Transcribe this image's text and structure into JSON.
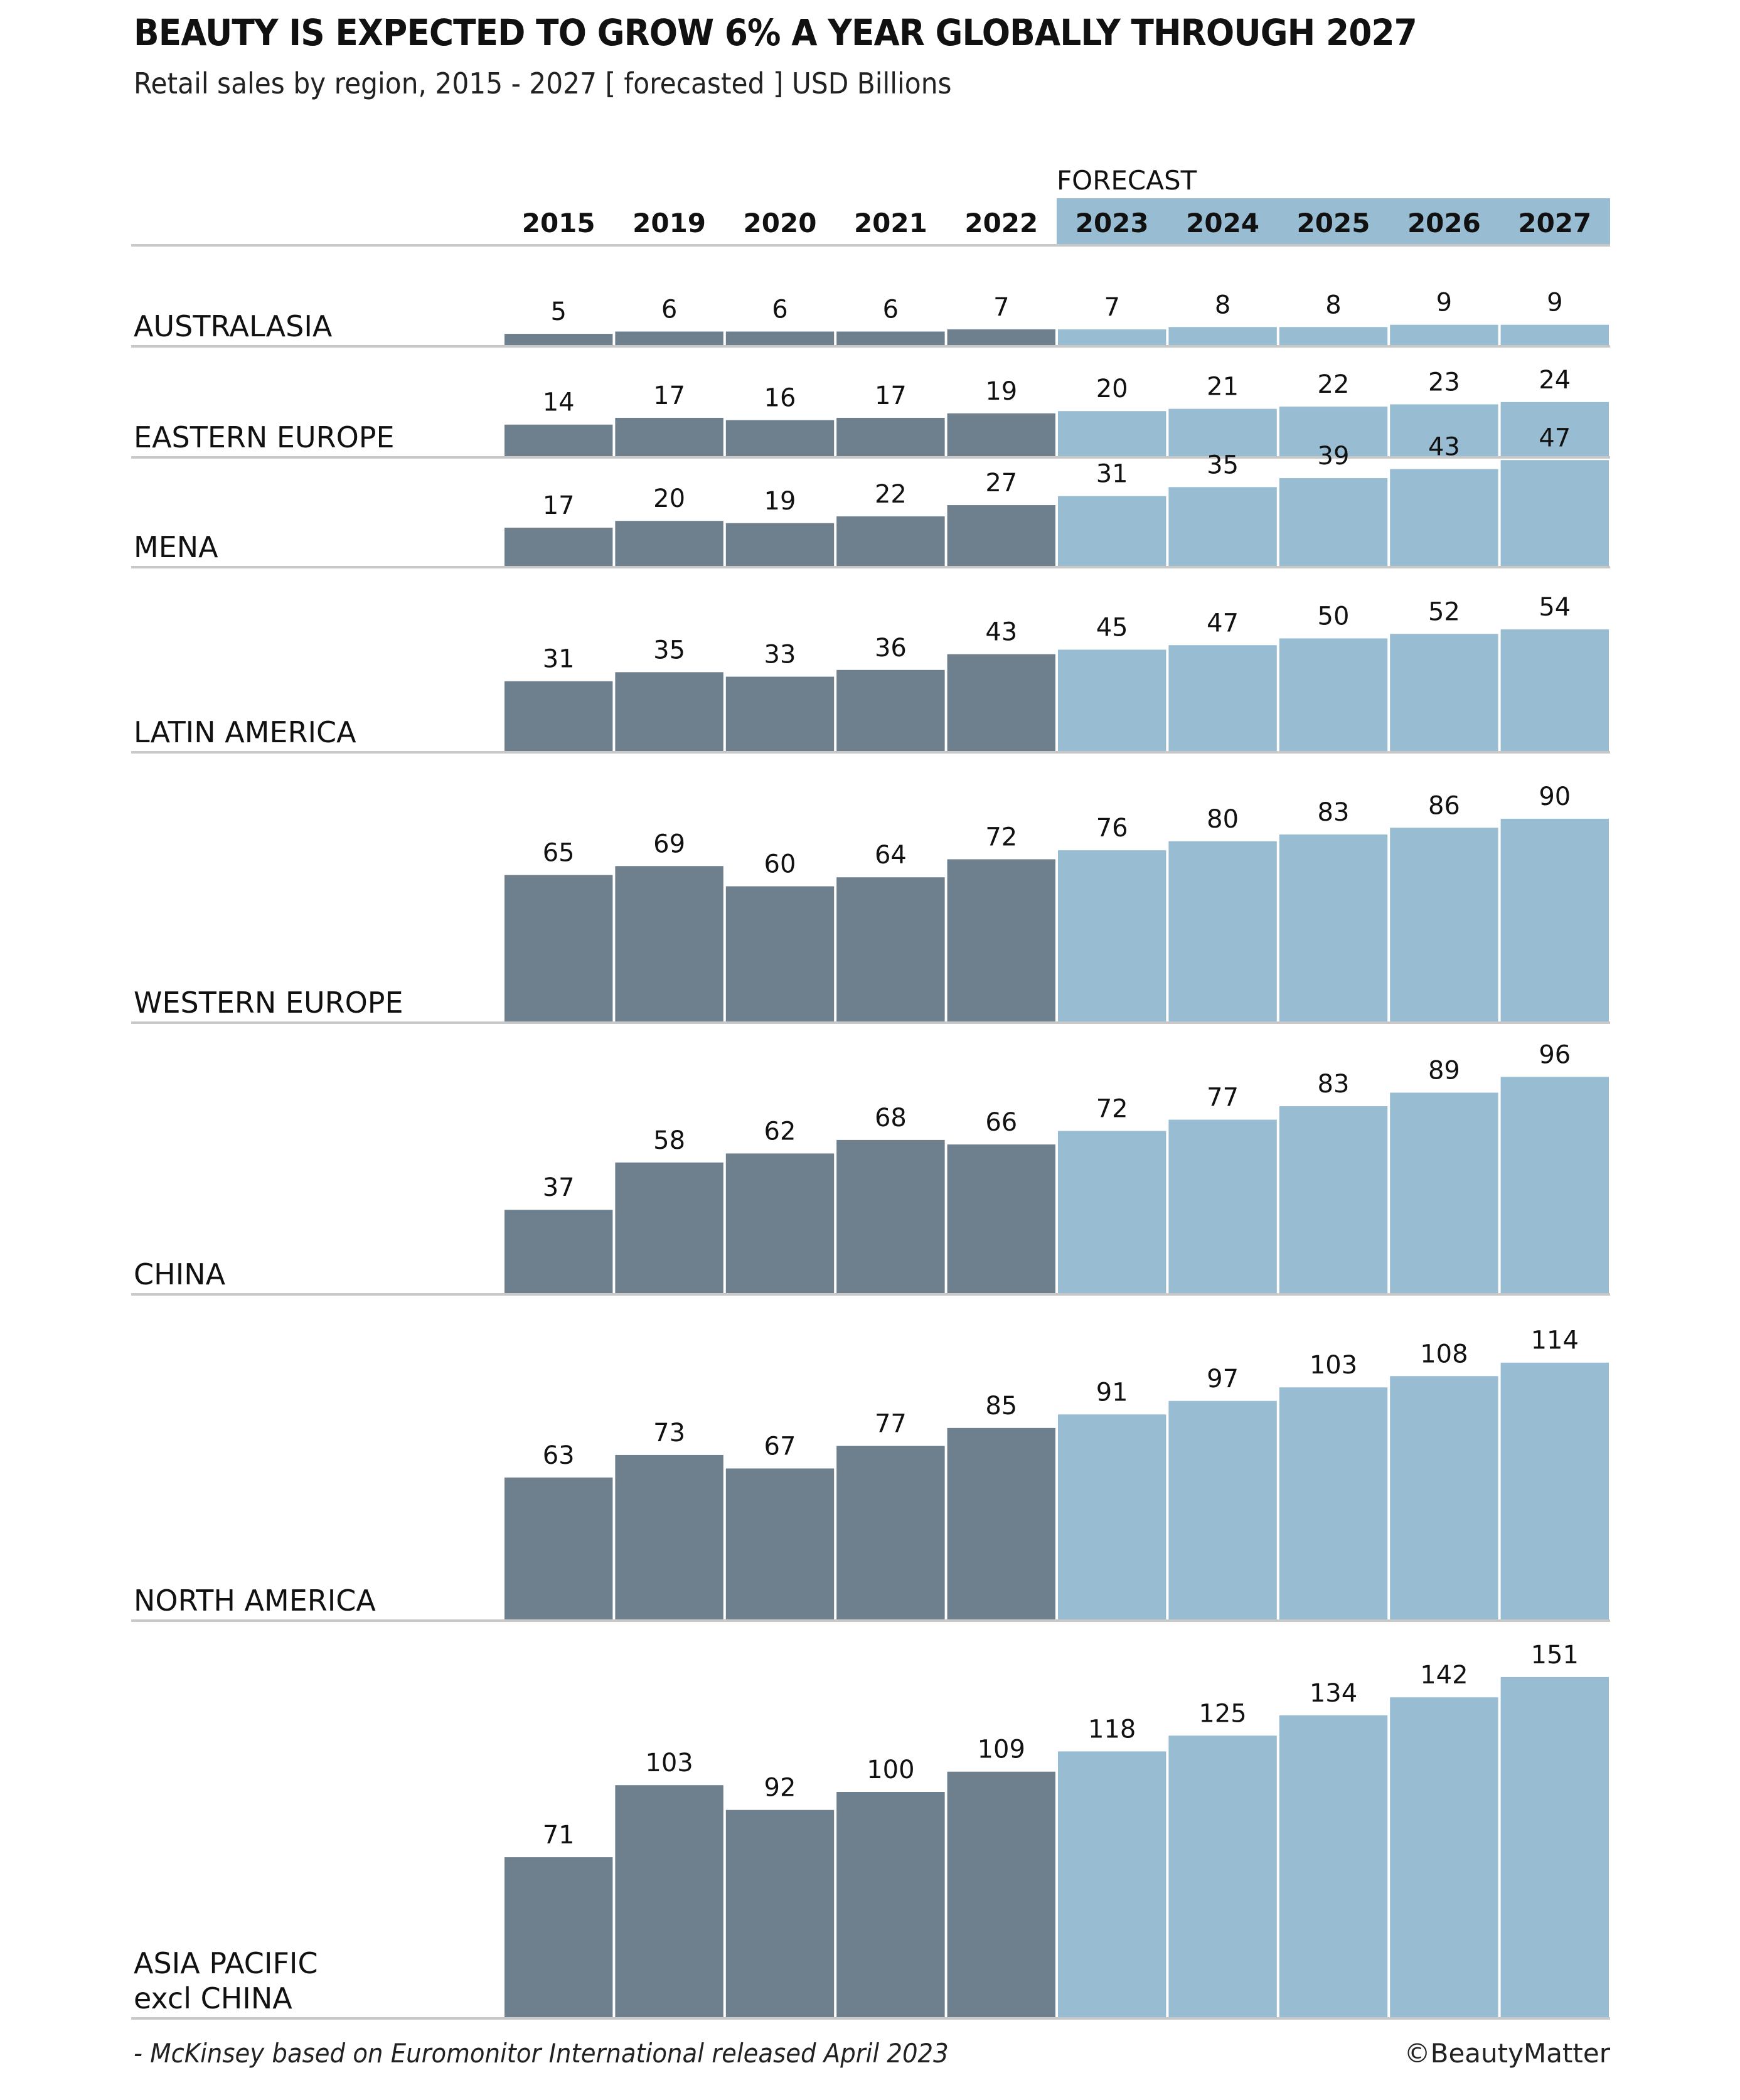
{
  "header": {
    "title": "BEAUTY IS EXPECTED TO GROW 6% A YEAR GLOBALLY THROUGH 2027",
    "subtitle": "Retail sales by region, 2015 - 2027 [ forecasted ] USD Billions"
  },
  "footer": {
    "source": "- McKinsey based on Euromonitor International released April 2023",
    "copyright": "©BeautyMatter"
  },
  "colors": {
    "actual": "#6e7f8d",
    "forecast": "#98bdd3",
    "forecast_header": "#98bdd3",
    "baseline": "#c8c8c8"
  },
  "chart_data": {
    "type": "bar",
    "title": "BEAUTY IS EXPECTED TO GROW 6% A YEAR GLOBALLY THROUGH 2027",
    "subtitle": "Retail sales by region, 2015 - 2027 [ forecasted ] USD Billions",
    "xlabel": "",
    "ylabel": "USD Billions",
    "categories": [
      "2015",
      "2019",
      "2020",
      "2021",
      "2022",
      "2023",
      "2024",
      "2025",
      "2026",
      "2027"
    ],
    "forecast_label": "FORECAST",
    "forecast_start_index": 5,
    "series": [
      {
        "name": "AUSTRALASIA",
        "values": [
          5,
          6,
          6,
          6,
          7,
          7,
          8,
          8,
          9,
          9
        ]
      },
      {
        "name": "EASTERN EUROPE",
        "values": [
          14,
          17,
          16,
          17,
          19,
          20,
          21,
          22,
          23,
          24
        ]
      },
      {
        "name": "MENA",
        "values": [
          17,
          20,
          19,
          22,
          27,
          31,
          35,
          39,
          43,
          47
        ]
      },
      {
        "name": "LATIN AMERICA",
        "values": [
          31,
          35,
          33,
          36,
          43,
          45,
          47,
          50,
          52,
          54
        ]
      },
      {
        "name": "WESTERN EUROPE",
        "values": [
          65,
          69,
          60,
          64,
          72,
          76,
          80,
          83,
          86,
          90
        ]
      },
      {
        "name": "CHINA",
        "values": [
          37,
          58,
          62,
          68,
          66,
          72,
          77,
          83,
          89,
          96
        ]
      },
      {
        "name": "NORTH AMERICA",
        "values": [
          63,
          73,
          67,
          77,
          85,
          91,
          97,
          103,
          108,
          114
        ]
      },
      {
        "name": "ASIA PACIFIC\nexcl CHINA",
        "values": [
          71,
          103,
          92,
          100,
          109,
          118,
          125,
          134,
          142,
          151
        ]
      }
    ],
    "legend": "none",
    "grid": false
  }
}
